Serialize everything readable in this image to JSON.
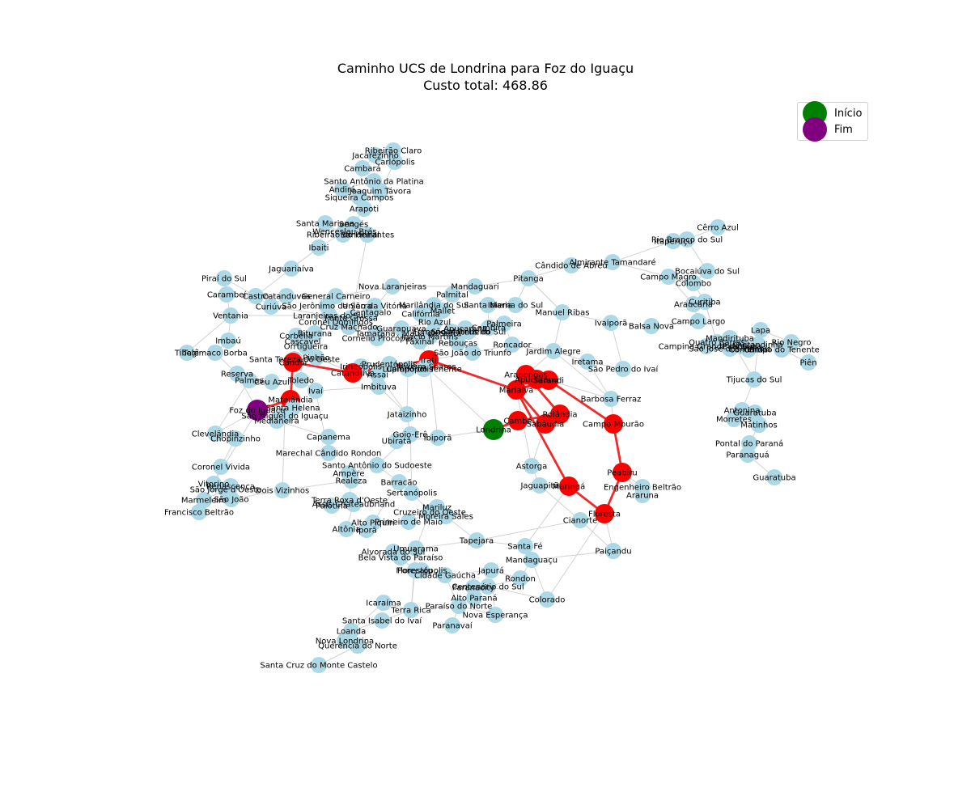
{
  "title": {
    "line1": "Caminho UCS de Londrina para Foz do Iguaçu",
    "line2": "Custo total: 468.86"
  },
  "legend": {
    "start_label": "Início",
    "end_label": "Fim",
    "start_color": "#008000",
    "end_color": "#800080"
  },
  "colors": {
    "node": "#add8e6",
    "path_node": "#ff0000",
    "edge": "#d3d3d3",
    "path_edge": "#ee2b2b"
  },
  "graph": {
    "start": "Londrina",
    "end": "Foz do Iguaçu",
    "path": [
      "Londrina",
      "Cambé",
      "Rolândia",
      "Arapongas",
      "Apucarana",
      "Mandaguari",
      "Marialva",
      "Sarandi",
      "Maringá",
      "Floresta",
      "Peabiru",
      "Campo Mourão",
      "Iretama",
      "Pitanga",
      "Candói",
      "Laranjeiras do Sul",
      "Cascavel",
      "Santa Tereza do Oeste",
      "Matelândia",
      "Santa Helena",
      "Foz do Iguaçu"
    ]
  }
}
